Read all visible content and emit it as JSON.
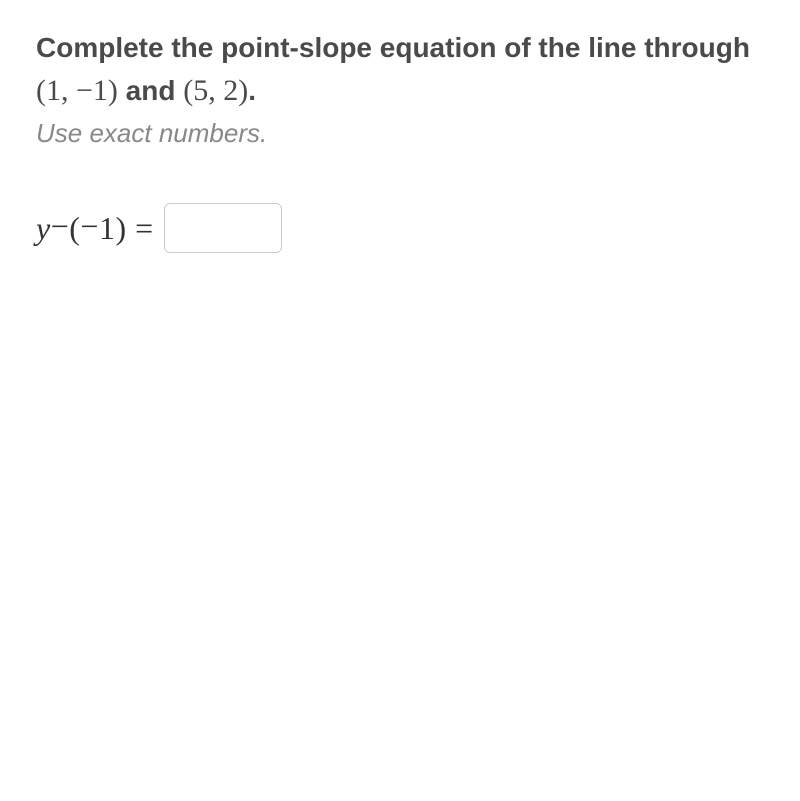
{
  "prompt": {
    "part1": "Complete the point-slope equation of the line through ",
    "point1": "(1, −1)",
    "and": " and ",
    "point2": "(5, 2)",
    "period": "."
  },
  "subprompt": "Use exact numbers.",
  "equation": {
    "y": "y",
    "minus1": " − ",
    "open": "(",
    "neg": "−",
    "one": "1",
    "close": ")",
    "equals": " = "
  },
  "input": {
    "value": ""
  },
  "styles": {
    "prompt_color": "#4a4a4a",
    "subprompt_color": "#888888",
    "equation_color": "#333333",
    "box_border": "#cccccc",
    "background": "#ffffff",
    "prompt_fontsize": 28,
    "subprompt_fontsize": 26,
    "equation_fontsize": 32
  }
}
